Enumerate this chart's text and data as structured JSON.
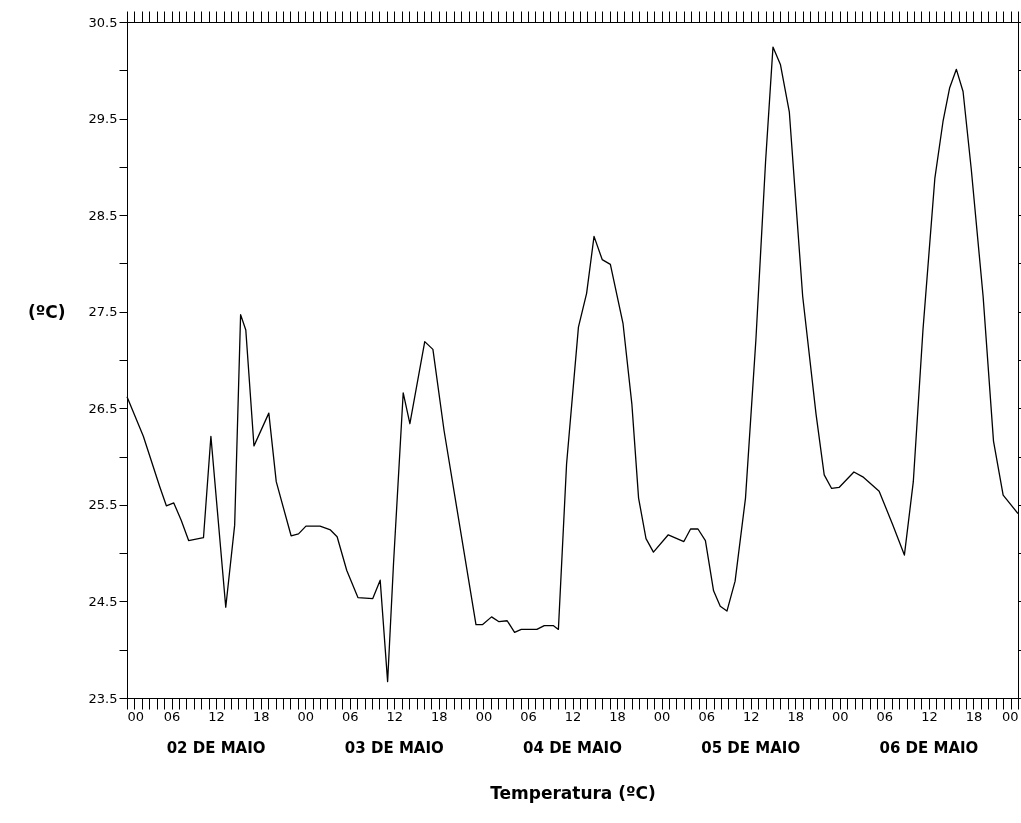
{
  "chart_data": {
    "type": "line",
    "xlabel": "Temperatura (ºC)",
    "ylabel": "(ºC)",
    "annotations": [
      "02 DE MAIO",
      "03 DE MAIO",
      "04 DE MAIO",
      "05 DE MAIO",
      "06 DE MAIO"
    ],
    "xlim": [
      0,
      120
    ],
    "ylim": [
      23.5,
      30.5
    ],
    "xticks": [
      {
        "value": 0,
        "label": "00"
      },
      {
        "value": 1,
        "label": null
      },
      {
        "value": 2,
        "label": null
      },
      {
        "value": 3,
        "label": null
      },
      {
        "value": 4,
        "label": null
      },
      {
        "value": 5,
        "label": null
      },
      {
        "value": 6,
        "label": "06"
      },
      {
        "value": 7,
        "label": null
      },
      {
        "value": 8,
        "label": null
      },
      {
        "value": 9,
        "label": null
      },
      {
        "value": 10,
        "label": null
      },
      {
        "value": 11,
        "label": null
      },
      {
        "value": 12,
        "label": "12"
      },
      {
        "value": 13,
        "label": null
      },
      {
        "value": 14,
        "label": null
      },
      {
        "value": 15,
        "label": null
      },
      {
        "value": 16,
        "label": null
      },
      {
        "value": 17,
        "label": null
      },
      {
        "value": 18,
        "label": "18"
      },
      {
        "value": 19,
        "label": null
      },
      {
        "value": 20,
        "label": null
      },
      {
        "value": 21,
        "label": null
      },
      {
        "value": 22,
        "label": null
      },
      {
        "value": 23,
        "label": null
      },
      {
        "value": 24,
        "label": "00"
      },
      {
        "value": 25,
        "label": null
      },
      {
        "value": 26,
        "label": null
      },
      {
        "value": 27,
        "label": null
      },
      {
        "value": 28,
        "label": null
      },
      {
        "value": 29,
        "label": null
      },
      {
        "value": 30,
        "label": "06"
      },
      {
        "value": 31,
        "label": null
      },
      {
        "value": 32,
        "label": null
      },
      {
        "value": 33,
        "label": null
      },
      {
        "value": 34,
        "label": null
      },
      {
        "value": 35,
        "label": null
      },
      {
        "value": 36,
        "label": "12"
      },
      {
        "value": 37,
        "label": null
      },
      {
        "value": 38,
        "label": null
      },
      {
        "value": 39,
        "label": null
      },
      {
        "value": 40,
        "label": null
      },
      {
        "value": 41,
        "label": null
      },
      {
        "value": 42,
        "label": "18"
      },
      {
        "value": 43,
        "label": null
      },
      {
        "value": 44,
        "label": null
      },
      {
        "value": 45,
        "label": null
      },
      {
        "value": 46,
        "label": null
      },
      {
        "value": 47,
        "label": null
      },
      {
        "value": 48,
        "label": "00"
      },
      {
        "value": 49,
        "label": null
      },
      {
        "value": 50,
        "label": null
      },
      {
        "value": 51,
        "label": null
      },
      {
        "value": 52,
        "label": null
      },
      {
        "value": 53,
        "label": null
      },
      {
        "value": 54,
        "label": "06"
      },
      {
        "value": 55,
        "label": null
      },
      {
        "value": 56,
        "label": null
      },
      {
        "value": 57,
        "label": null
      },
      {
        "value": 58,
        "label": null
      },
      {
        "value": 59,
        "label": null
      },
      {
        "value": 60,
        "label": "12"
      },
      {
        "value": 61,
        "label": null
      },
      {
        "value": 62,
        "label": null
      },
      {
        "value": 63,
        "label": null
      },
      {
        "value": 64,
        "label": null
      },
      {
        "value": 65,
        "label": null
      },
      {
        "value": 66,
        "label": "18"
      },
      {
        "value": 67,
        "label": null
      },
      {
        "value": 68,
        "label": null
      },
      {
        "value": 69,
        "label": null
      },
      {
        "value": 70,
        "label": null
      },
      {
        "value": 71,
        "label": null
      },
      {
        "value": 72,
        "label": "00"
      },
      {
        "value": 73,
        "label": null
      },
      {
        "value": 74,
        "label": null
      },
      {
        "value": 75,
        "label": null
      },
      {
        "value": 76,
        "label": null
      },
      {
        "value": 77,
        "label": null
      },
      {
        "value": 78,
        "label": "06"
      },
      {
        "value": 79,
        "label": null
      },
      {
        "value": 80,
        "label": null
      },
      {
        "value": 81,
        "label": null
      },
      {
        "value": 82,
        "label": null
      },
      {
        "value": 83,
        "label": null
      },
      {
        "value": 84,
        "label": "12"
      },
      {
        "value": 85,
        "label": null
      },
      {
        "value": 86,
        "label": null
      },
      {
        "value": 87,
        "label": null
      },
      {
        "value": 88,
        "label": null
      },
      {
        "value": 89,
        "label": null
      },
      {
        "value": 90,
        "label": "18"
      },
      {
        "value": 91,
        "label": null
      },
      {
        "value": 92,
        "label": null
      },
      {
        "value": 93,
        "label": null
      },
      {
        "value": 94,
        "label": null
      },
      {
        "value": 95,
        "label": null
      },
      {
        "value": 96,
        "label": "00"
      },
      {
        "value": 97,
        "label": null
      },
      {
        "value": 98,
        "label": null
      },
      {
        "value": 99,
        "label": null
      },
      {
        "value": 100,
        "label": null
      },
      {
        "value": 101,
        "label": null
      },
      {
        "value": 102,
        "label": "06"
      },
      {
        "value": 103,
        "label": null
      },
      {
        "value": 104,
        "label": null
      },
      {
        "value": 105,
        "label": null
      },
      {
        "value": 106,
        "label": null
      },
      {
        "value": 107,
        "label": null
      },
      {
        "value": 108,
        "label": "12"
      },
      {
        "value": 109,
        "label": null
      },
      {
        "value": 110,
        "label": null
      },
      {
        "value": 111,
        "label": null
      },
      {
        "value": 112,
        "label": null
      },
      {
        "value": 113,
        "label": null
      },
      {
        "value": 114,
        "label": "18"
      },
      {
        "value": 115,
        "label": null
      },
      {
        "value": 116,
        "label": null
      },
      {
        "value": 117,
        "label": null
      },
      {
        "value": 118,
        "label": null
      },
      {
        "value": 119,
        "label": null
      },
      {
        "value": 120,
        "label": "00"
      }
    ],
    "yticks": [
      23.5,
      {
        "value": 24,
        "label": null
      },
      24.5,
      {
        "value": 25,
        "label": null
      },
      25.5,
      {
        "value": 26,
        "label": null
      },
      26.5,
      {
        "value": 27,
        "label": null
      },
      27.5,
      {
        "value": 28,
        "label": null
      },
      28.5,
      {
        "value": 29,
        "label": null
      },
      29.5,
      {
        "value": 30,
        "label": null
      },
      30.5
    ],
    "grid": false,
    "marker": "none",
    "line_style": "solid",
    "series": [
      {
        "color": "#000000",
        "x": [
          0,
          2.2,
          4.4,
          5.3,
          6.3,
          7.3,
          8.3,
          10.3,
          11.3,
          13.3,
          14.5,
          15.3,
          16,
          17.1,
          19.1,
          20.1,
          22.1,
          23.1,
          24.1,
          26,
          27.4,
          28.3,
          29.6,
          31.1,
          33.1,
          34.1,
          35.1,
          35.9,
          37.2,
          38.1,
          40.1,
          41.2,
          42.7,
          47,
          47.9,
          49.1,
          50.1,
          51.2,
          52.2,
          53.1,
          55.2,
          56.2,
          57.4,
          58.1,
          59.2,
          60.8,
          61.9,
          62.9,
          64,
          65.1,
          66.8,
          68,
          68.9,
          69.9,
          70.9,
          72.9,
          75,
          75.9,
          76.9,
          77.9,
          79,
          79.9,
          80.8,
          81.9,
          83.3,
          84.7,
          86,
          87,
          88,
          89.2,
          91,
          92.8,
          93.9,
          94.9,
          95.9,
          97.9,
          99.1,
          101.3,
          103.1,
          104.7,
          105.9,
          107.2,
          108.8,
          109.9,
          110.8,
          111.7,
          112.6,
          113.7,
          115.3,
          116.7,
          118,
          120
        ],
        "values": [
          26.62,
          26.21,
          25.69,
          25.49,
          25.52,
          25.34,
          25.13,
          25.16,
          26.21,
          24.44,
          25.29,
          27.47,
          27.31,
          26.11,
          26.45,
          25.74,
          25.18,
          25.2,
          25.28,
          25.28,
          25.24,
          25.17,
          24.82,
          24.54,
          24.53,
          24.72,
          23.67,
          24.9,
          26.66,
          26.34,
          27.19,
          27.11,
          26.27,
          24.26,
          24.26,
          24.34,
          24.29,
          24.3,
          24.18,
          24.21,
          24.21,
          24.25,
          24.25,
          24.21,
          25.92,
          27.34,
          27.69,
          28.28,
          28.04,
          27.99,
          27.38,
          26.54,
          25.57,
          25.15,
          25.01,
          25.19,
          25.12,
          25.25,
          25.25,
          25.13,
          24.61,
          24.45,
          24.4,
          24.71,
          25.57,
          27.21,
          29.05,
          30.24,
          30.06,
          29.57,
          27.66,
          26.44,
          25.81,
          25.67,
          25.68,
          25.84,
          25.79,
          25.64,
          25.3,
          24.98,
          25.74,
          27.31,
          28.88,
          29.47,
          29.82,
          30.01,
          29.78,
          28.98,
          27.66,
          26.16,
          25.6,
          25.41
        ]
      }
    ]
  }
}
